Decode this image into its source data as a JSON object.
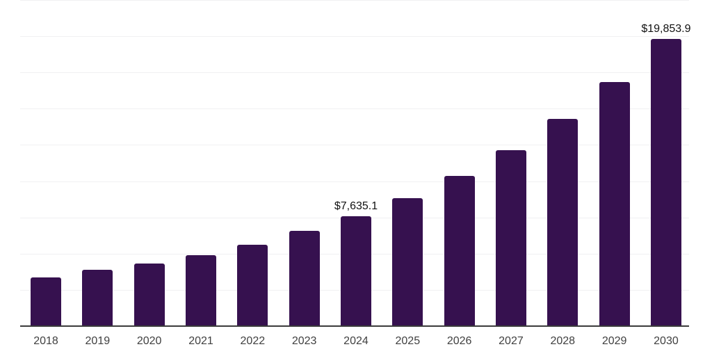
{
  "colors": {
    "bar": "#36114F",
    "axis_line": "#3b3b3b",
    "gridline": "#f0f0f2",
    "background": "#ffffff",
    "year_label_text": "#404040",
    "data_label_text": "#111111"
  },
  "chart_data": {
    "type": "bar",
    "title": "",
    "xlabel": "",
    "ylabel": "",
    "categories": [
      "2018",
      "2019",
      "2020",
      "2021",
      "2022",
      "2023",
      "2024",
      "2025",
      "2026",
      "2027",
      "2028",
      "2029",
      "2030"
    ],
    "values": [
      3430,
      3960,
      4390,
      4965,
      5685,
      6600,
      7635.1,
      8900,
      10390,
      12165,
      14325,
      16870,
      19853.9
    ],
    "data_labels": [
      null,
      null,
      null,
      null,
      null,
      null,
      "$7,635.1",
      null,
      null,
      null,
      null,
      null,
      "$19,853.9"
    ],
    "ylim": [
      0,
      22500
    ],
    "gridline_step": 2500,
    "grid": true,
    "legend": false,
    "y_axis_tick_labels_visible": false,
    "bar_color": "#36114F"
  }
}
